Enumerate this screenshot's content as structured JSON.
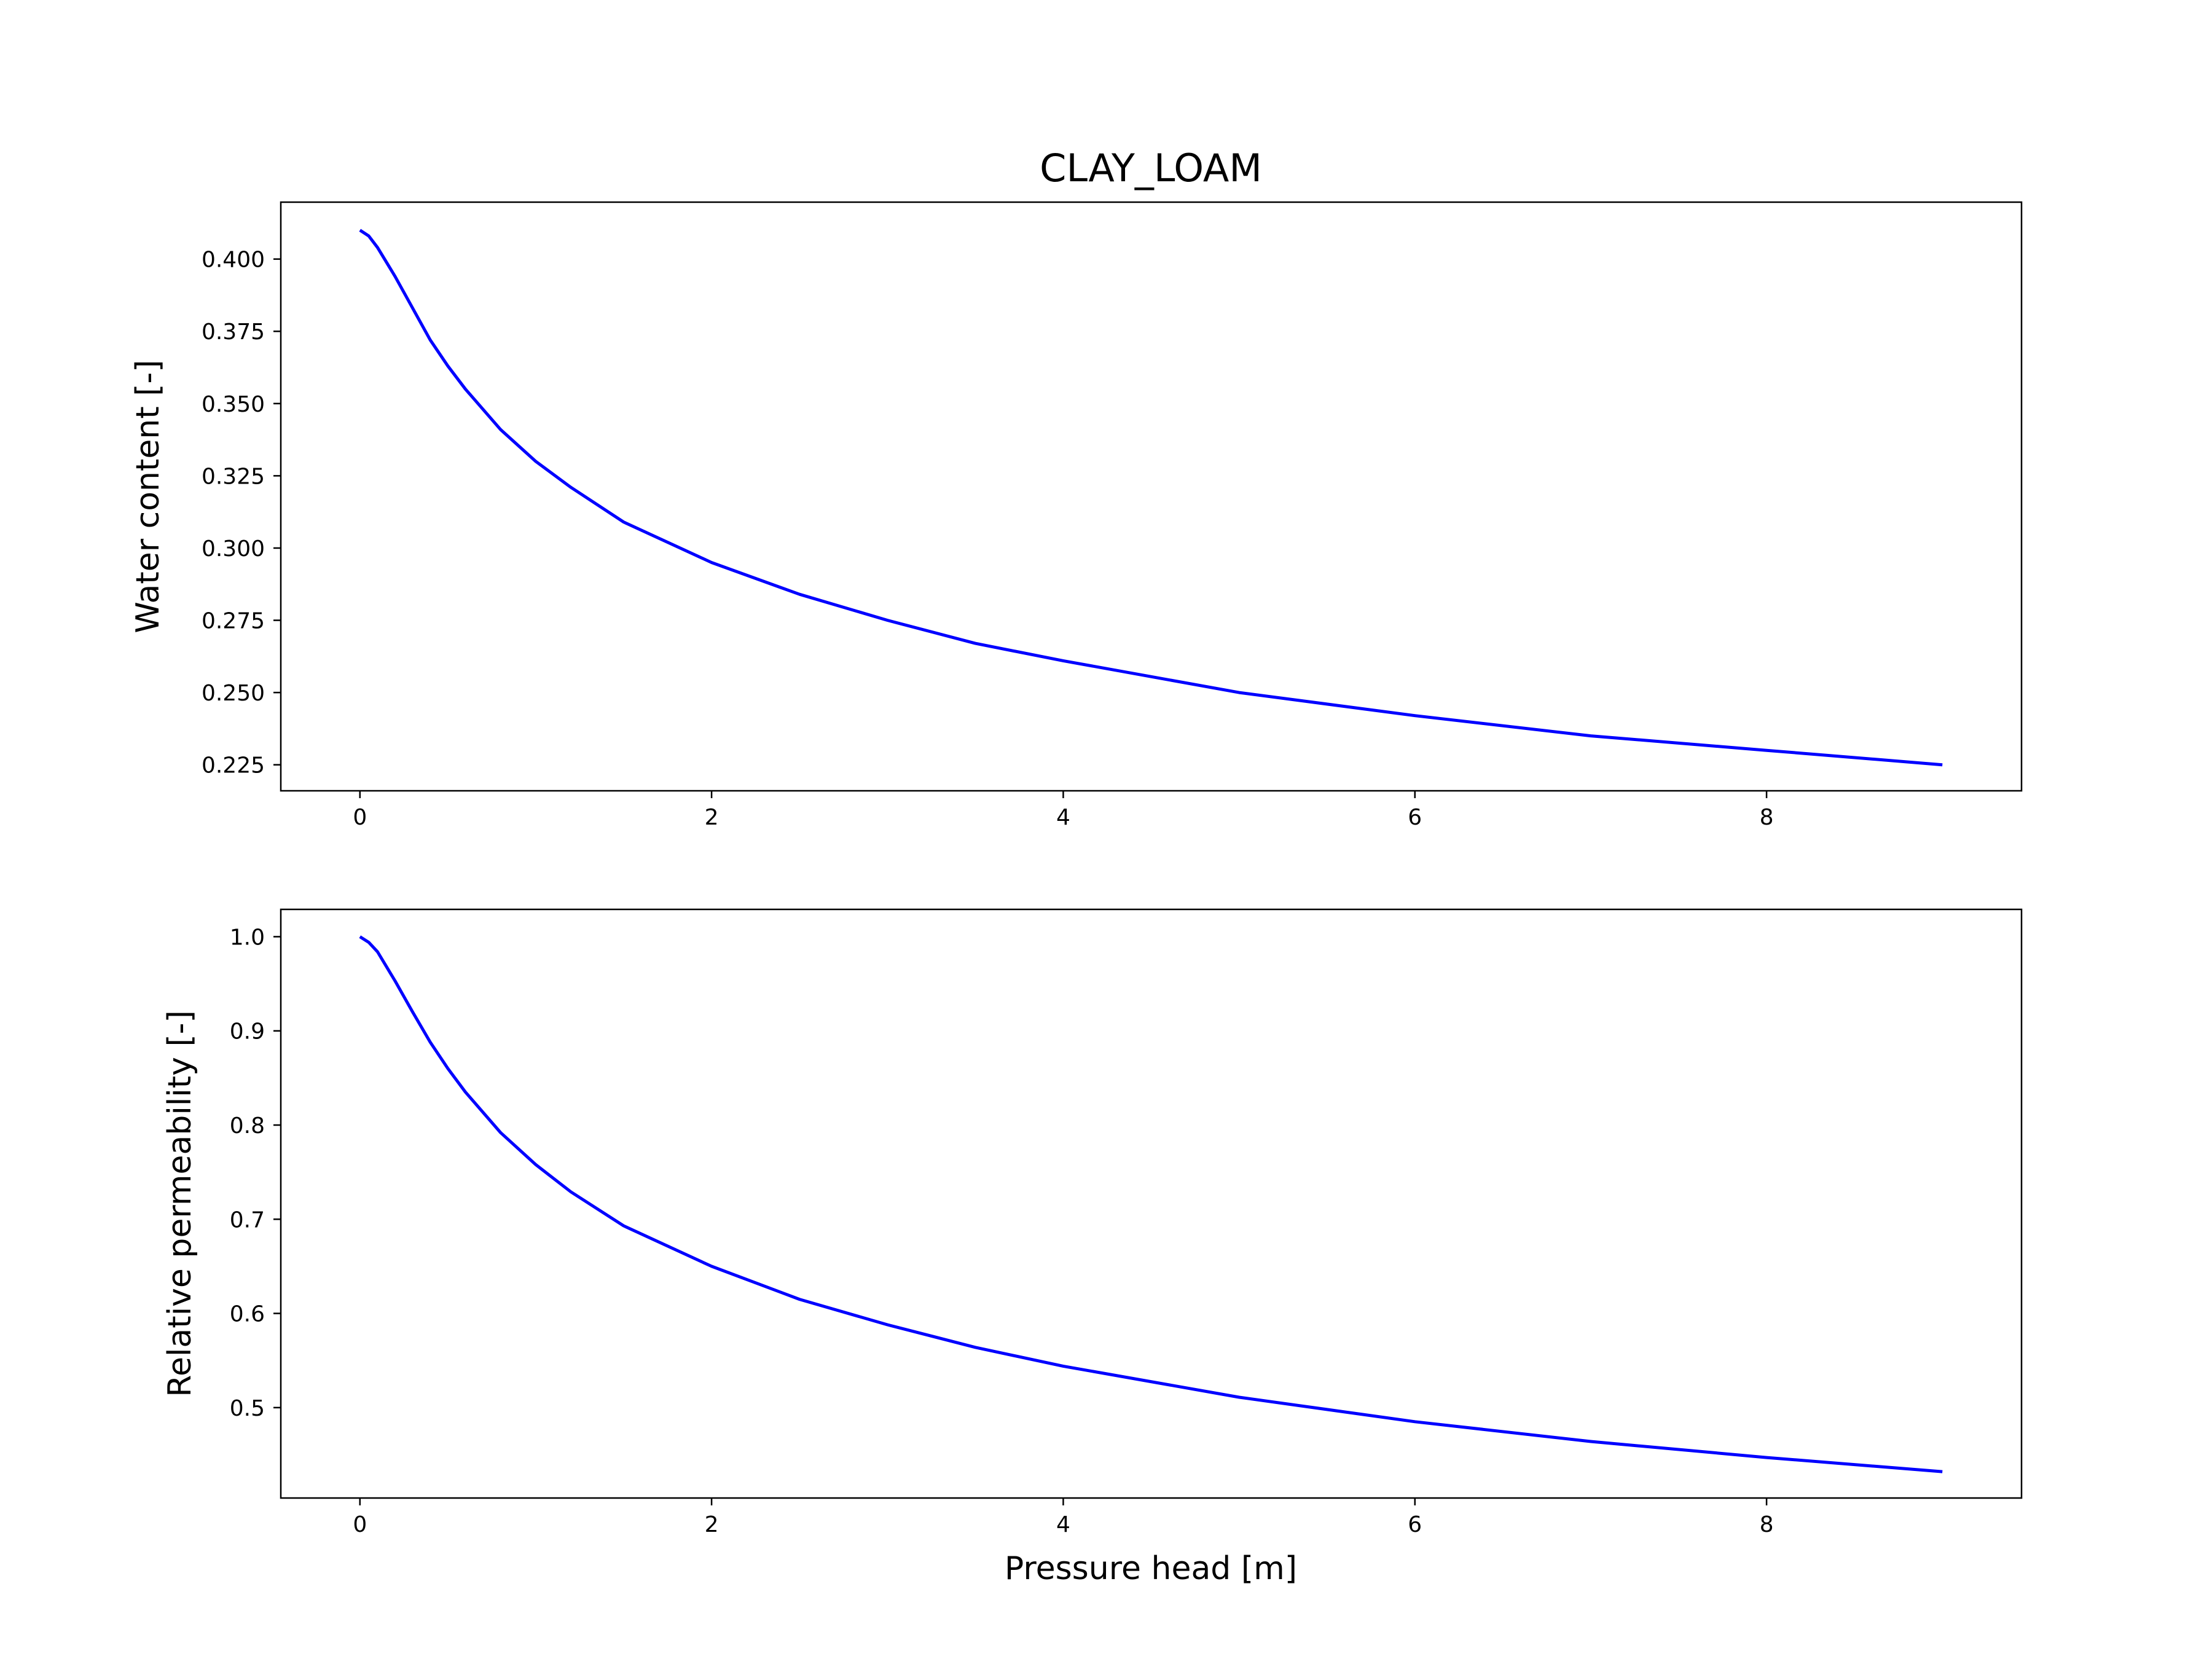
{
  "figure": {
    "title": "CLAY_LOAM",
    "xlabel": "Pressure head [m]"
  },
  "chart_data": [
    {
      "type": "line",
      "ylabel": "Water content [-]",
      "xlim": [
        -0.45,
        9.45
      ],
      "ylim": [
        0.216,
        0.4197
      ],
      "xticks": [
        0,
        2,
        4,
        6,
        8
      ],
      "xtick_labels": [
        "0",
        "2",
        "4",
        "6",
        "8"
      ],
      "yticks": [
        0.225,
        0.25,
        0.275,
        0.3,
        0.325,
        0.35,
        0.375,
        0.4
      ],
      "ytick_labels": [
        "0.225",
        "0.250",
        "0.275",
        "0.300",
        "0.325",
        "0.350",
        "0.375",
        "0.400"
      ],
      "grid": false,
      "series": [
        {
          "color": "#0000ff",
          "x": [
            0,
            0.05,
            0.1,
            0.2,
            0.3,
            0.4,
            0.5,
            0.6,
            0.8,
            1.0,
            1.2,
            1.5,
            2.0,
            2.5,
            3.0,
            3.5,
            4.0,
            5.0,
            6.0,
            7.0,
            8.0,
            9.0
          ],
          "y": [
            0.41,
            0.408,
            0.404,
            0.394,
            0.383,
            0.372,
            0.363,
            0.355,
            0.341,
            0.33,
            0.321,
            0.309,
            0.295,
            0.284,
            0.275,
            0.267,
            0.261,
            0.25,
            0.242,
            0.235,
            0.23,
            0.225
          ]
        }
      ]
    },
    {
      "type": "line",
      "ylabel": "Relative permeability [-]",
      "xlabel": "Pressure head [m]",
      "xlim": [
        -0.45,
        9.45
      ],
      "ylim": [
        0.404,
        1.029
      ],
      "xticks": [
        0,
        2,
        4,
        6,
        8
      ],
      "xtick_labels": [
        "0",
        "2",
        "4",
        "6",
        "8"
      ],
      "yticks": [
        0.5,
        0.6,
        0.7,
        0.8,
        0.9,
        1.0
      ],
      "ytick_labels": [
        "0.5",
        "0.6",
        "0.7",
        "0.8",
        "0.9",
        "1.0"
      ],
      "grid": false,
      "series": [
        {
          "color": "#0000ff",
          "x": [
            0,
            0.05,
            0.1,
            0.2,
            0.3,
            0.4,
            0.5,
            0.6,
            0.8,
            1.0,
            1.2,
            1.5,
            2.0,
            2.5,
            3.0,
            3.5,
            4.0,
            5.0,
            6.0,
            7.0,
            8.0,
            9.0
          ],
          "y": [
            1.0,
            0.994,
            0.984,
            0.953,
            0.92,
            0.888,
            0.86,
            0.835,
            0.792,
            0.758,
            0.729,
            0.693,
            0.65,
            0.615,
            0.588,
            0.564,
            0.544,
            0.511,
            0.485,
            0.464,
            0.447,
            0.432
          ]
        }
      ]
    }
  ]
}
